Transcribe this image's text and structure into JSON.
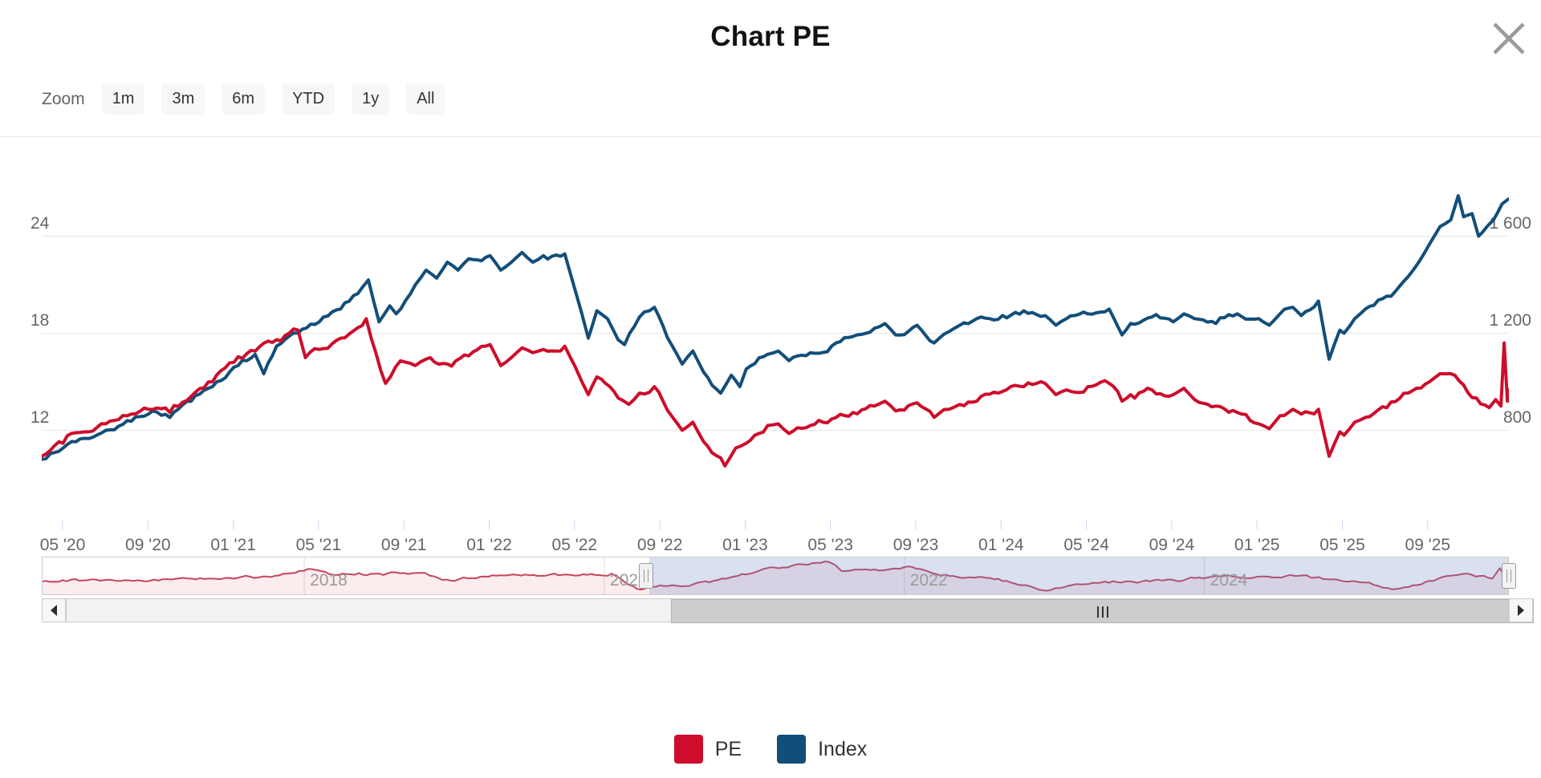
{
  "modal": {
    "title": "Chart PE",
    "close_icon": "x-icon"
  },
  "toolbar": {
    "zoom_label": "Zoom",
    "range_buttons": [
      "1m",
      "3m",
      "6m",
      "YTD",
      "1y",
      "All"
    ]
  },
  "legend": {
    "items": [
      {
        "label": "PE",
        "color": "#cd0d2b"
      },
      {
        "label": "Index",
        "color": "#134e7a"
      }
    ]
  },
  "colors": {
    "pe_line": "#cd0d2b",
    "index_line": "#134e7a",
    "gridline": "#e6e6e6",
    "axis_text": "#666666",
    "tick_mark": "#ccd6eb",
    "navigator_line": "#c5455c",
    "navigator_fill": "rgba(205,13,43,0.08)",
    "navigator_mask": "rgba(102,133,194,0.25)",
    "navigator_outline": "#cccccc",
    "scrollbar_thumb": "#cccccc",
    "scrollbar_track": "#f2f2f2",
    "button_bg": "#f7f7f7",
    "close_icon_color": "#9b9b9b"
  },
  "chart_data": {
    "type": "line",
    "title": "Chart PE",
    "x_axis": {
      "unit": "months since 2020-04",
      "labels": [
        "05 '20",
        "09 '20",
        "01 '21",
        "05 '21",
        "09 '21",
        "01 '22",
        "05 '22",
        "09 '22",
        "01 '23",
        "05 '23",
        "09 '23",
        "01 '24",
        "05 '24",
        "09 '24",
        "01 '25",
        "05 '25",
        "09 '25"
      ]
    },
    "y_axis_left": {
      "labels": [
        "24",
        "18",
        "12"
      ],
      "values": [
        24,
        18,
        12
      ],
      "range": [
        9,
        27
      ]
    },
    "y_axis_right": {
      "labels": [
        "1 600",
        "1 200",
        "800"
      ],
      "values": [
        1600,
        1200,
        800
      ],
      "range": [
        600,
        1800
      ]
    },
    "grid": true,
    "legend_position": "bottom",
    "series": [
      {
        "name": "PE",
        "axis": "left",
        "color": "#cd0d2b",
        "points": [
          [
            0,
            10.4
          ],
          [
            1,
            11.2
          ],
          [
            2,
            11.9
          ],
          [
            3,
            12.4
          ],
          [
            4,
            12.9
          ],
          [
            5,
            13.3
          ],
          [
            6,
            13.1
          ],
          [
            7,
            14.1
          ],
          [
            8,
            15.0
          ],
          [
            9,
            16.2
          ],
          [
            10,
            16.9
          ],
          [
            11,
            17.6
          ],
          [
            12,
            18.2
          ],
          [
            12.35,
            16.5
          ],
          [
            13,
            17.0
          ],
          [
            14,
            17.7
          ],
          [
            15.2,
            18.9
          ],
          [
            16.1,
            14.9
          ],
          [
            16.8,
            16.3
          ],
          [
            17.5,
            16.0
          ],
          [
            18,
            16.4
          ],
          [
            19,
            16.1
          ],
          [
            20,
            16.6
          ],
          [
            21,
            17.3
          ],
          [
            21.5,
            16.0
          ],
          [
            22,
            16.5
          ],
          [
            22.5,
            17.1
          ],
          [
            23,
            16.8
          ],
          [
            23.5,
            17.0
          ],
          [
            24.5,
            17.2
          ],
          [
            25,
            15.9
          ],
          [
            25.3,
            15.0
          ],
          [
            25.6,
            14.2
          ],
          [
            26,
            15.3
          ],
          [
            27,
            14.0
          ],
          [
            27.5,
            13.6
          ],
          [
            28,
            14.3
          ],
          [
            28.7,
            14.7
          ],
          [
            29.5,
            12.9
          ],
          [
            30,
            12.0
          ],
          [
            30.5,
            12.5
          ],
          [
            31,
            11.3
          ],
          [
            31.8,
            10.3
          ],
          [
            32,
            9.8
          ],
          [
            32.5,
            10.9
          ],
          [
            33,
            11.2
          ],
          [
            34,
            12.3
          ],
          [
            34.5,
            12.4
          ],
          [
            35,
            11.8
          ],
          [
            36,
            12.3
          ],
          [
            37,
            12.7
          ],
          [
            38,
            13.1
          ],
          [
            39,
            13.5
          ],
          [
            39.5,
            13.8
          ],
          [
            40,
            13.2
          ],
          [
            41,
            13.7
          ],
          [
            41.8,
            12.8
          ],
          [
            42.5,
            13.3
          ],
          [
            43,
            13.6
          ],
          [
            44,
            14.1
          ],
          [
            45,
            14.4
          ],
          [
            46,
            14.7
          ],
          [
            47,
            14.9
          ],
          [
            47.5,
            14.2
          ],
          [
            48,
            14.5
          ],
          [
            49,
            14.7
          ],
          [
            50,
            14.9
          ],
          [
            50.6,
            13.8
          ],
          [
            51,
            14.2
          ],
          [
            52,
            14.5
          ],
          [
            53,
            14.2
          ],
          [
            53.5,
            14.6
          ],
          [
            54,
            13.9
          ],
          [
            55,
            13.5
          ],
          [
            56,
            13.1
          ],
          [
            57,
            12.4
          ],
          [
            57.5,
            12.1
          ],
          [
            58,
            12.9
          ],
          [
            58.6,
            13.3
          ],
          [
            59,
            13.0
          ],
          [
            59.8,
            13.3
          ],
          [
            60.3,
            10.4
          ],
          [
            60.8,
            11.9
          ],
          [
            61,
            11.7
          ],
          [
            61.5,
            12.5
          ],
          [
            62,
            12.8
          ],
          [
            63,
            13.4
          ],
          [
            64,
            14.3
          ],
          [
            65,
            15.0
          ],
          [
            65.5,
            15.5
          ],
          [
            66,
            15.5
          ],
          [
            66.6,
            14.8
          ],
          [
            67.2,
            14.0
          ],
          [
            67.8,
            13.4
          ],
          [
            68.1,
            13.9
          ],
          [
            68.35,
            13.5
          ],
          [
            68.5,
            17.4
          ],
          [
            68.65,
            13.8
          ],
          [
            68.7,
            14.5
          ]
        ]
      },
      {
        "name": "Index",
        "axis": "right",
        "color": "#134e7a",
        "points": [
          [
            0,
            680
          ],
          [
            1,
            727
          ],
          [
            2,
            767
          ],
          [
            3,
            800
          ],
          [
            4,
            840
          ],
          [
            5,
            867
          ],
          [
            6,
            853
          ],
          [
            7,
            920
          ],
          [
            8,
            980
          ],
          [
            9,
            1060
          ],
          [
            10,
            1113
          ],
          [
            10.4,
            1033
          ],
          [
            11,
            1147
          ],
          [
            12,
            1200
          ],
          [
            13,
            1247
          ],
          [
            14,
            1300
          ],
          [
            15,
            1387
          ],
          [
            15.3,
            1420
          ],
          [
            15.8,
            1247
          ],
          [
            16.3,
            1313
          ],
          [
            16.6,
            1280
          ],
          [
            17.5,
            1400
          ],
          [
            18,
            1460
          ],
          [
            18.5,
            1427
          ],
          [
            19,
            1493
          ],
          [
            19.5,
            1460
          ],
          [
            20,
            1507
          ],
          [
            21,
            1520
          ],
          [
            21.5,
            1460
          ],
          [
            22,
            1493
          ],
          [
            22.5,
            1533
          ],
          [
            23,
            1493
          ],
          [
            23.5,
            1520
          ],
          [
            24.5,
            1527
          ],
          [
            25,
            1373
          ],
          [
            25.3,
            1280
          ],
          [
            25.6,
            1180
          ],
          [
            26,
            1293
          ],
          [
            26.5,
            1260
          ],
          [
            27,
            1173
          ],
          [
            27.3,
            1153
          ],
          [
            28,
            1267
          ],
          [
            28.7,
            1307
          ],
          [
            29.5,
            1153
          ],
          [
            30,
            1073
          ],
          [
            30.5,
            1127
          ],
          [
            31,
            1040
          ],
          [
            31.8,
            953
          ],
          [
            32.3,
            1027
          ],
          [
            32.7,
            980
          ],
          [
            33,
            1053
          ],
          [
            34,
            1113
          ],
          [
            34.5,
            1127
          ],
          [
            35,
            1087
          ],
          [
            36,
            1120
          ],
          [
            37,
            1147
          ],
          [
            38,
            1187
          ],
          [
            39,
            1220
          ],
          [
            39.5,
            1240
          ],
          [
            40,
            1193
          ],
          [
            41,
            1233
          ],
          [
            41.8,
            1160
          ],
          [
            42.5,
            1207
          ],
          [
            43,
            1233
          ],
          [
            44,
            1267
          ],
          [
            45,
            1273
          ],
          [
            46,
            1293
          ],
          [
            47,
            1273
          ],
          [
            47.5,
            1233
          ],
          [
            48,
            1260
          ],
          [
            49,
            1280
          ],
          [
            50,
            1300
          ],
          [
            50.6,
            1193
          ],
          [
            51,
            1240
          ],
          [
            52,
            1267
          ],
          [
            53,
            1247
          ],
          [
            53.5,
            1280
          ],
          [
            54,
            1260
          ],
          [
            55,
            1240
          ],
          [
            56,
            1280
          ],
          [
            57,
            1260
          ],
          [
            57.5,
            1233
          ],
          [
            58,
            1280
          ],
          [
            58.6,
            1307
          ],
          [
            59,
            1273
          ],
          [
            59.8,
            1333
          ],
          [
            60.3,
            1093
          ],
          [
            60.8,
            1213
          ],
          [
            61,
            1200
          ],
          [
            61.5,
            1260
          ],
          [
            62,
            1300
          ],
          [
            63,
            1353
          ],
          [
            64,
            1433
          ],
          [
            64.5,
            1493
          ],
          [
            65,
            1567
          ],
          [
            65.5,
            1640
          ],
          [
            66,
            1667
          ],
          [
            66.35,
            1767
          ],
          [
            66.6,
            1680
          ],
          [
            67,
            1693
          ],
          [
            67.3,
            1600
          ],
          [
            67.7,
            1640
          ],
          [
            68,
            1667
          ],
          [
            68.4,
            1733
          ],
          [
            68.7,
            1753
          ]
        ]
      }
    ],
    "navigator": {
      "series": "PE",
      "x_range_years": [
        2016.25,
        2026.03
      ],
      "selected_start_year": 2020.3,
      "year_labels": [
        "2018",
        "2020",
        "2022",
        "2024"
      ],
      "years": [
        2018,
        2020,
        2022,
        2024
      ],
      "points": [
        [
          2016.25,
          12.8
        ],
        [
          2016.5,
          13.1
        ],
        [
          2016.75,
          13.0
        ],
        [
          2017.0,
          13.4
        ],
        [
          2017.25,
          13.7
        ],
        [
          2017.5,
          13.9
        ],
        [
          2017.75,
          14.3
        ],
        [
          2018.05,
          16.5
        ],
        [
          2018.2,
          14.8
        ],
        [
          2018.5,
          15.2
        ],
        [
          2018.75,
          15.4
        ],
        [
          2018.95,
          13.4
        ],
        [
          2019.2,
          14.3
        ],
        [
          2019.5,
          14.7
        ],
        [
          2019.75,
          14.9
        ],
        [
          2020.05,
          15.2
        ],
        [
          2020.22,
          10.6
        ],
        [
          2020.4,
          11.5
        ],
        [
          2020.7,
          12.6
        ],
        [
          2021.0,
          15.5
        ],
        [
          2021.3,
          18.0
        ],
        [
          2021.5,
          18.6
        ],
        [
          2021.58,
          16.0
        ],
        [
          2021.8,
          16.4
        ],
        [
          2022.05,
          17.2
        ],
        [
          2022.3,
          14.5
        ],
        [
          2022.6,
          13.5
        ],
        [
          2022.95,
          10.1
        ],
        [
          2023.2,
          12.0
        ],
        [
          2023.5,
          12.9
        ],
        [
          2023.8,
          13.2
        ],
        [
          2024.1,
          14.4
        ],
        [
          2024.4,
          14.3
        ],
        [
          2024.6,
          14.5
        ],
        [
          2024.9,
          13.2
        ],
        [
          2025.1,
          12.5
        ],
        [
          2025.28,
          10.6
        ],
        [
          2025.5,
          13.0
        ],
        [
          2025.75,
          15.2
        ],
        [
          2025.92,
          13.7
        ],
        [
          2025.97,
          16.8
        ],
        [
          2026.0,
          14.6
        ]
      ]
    }
  }
}
